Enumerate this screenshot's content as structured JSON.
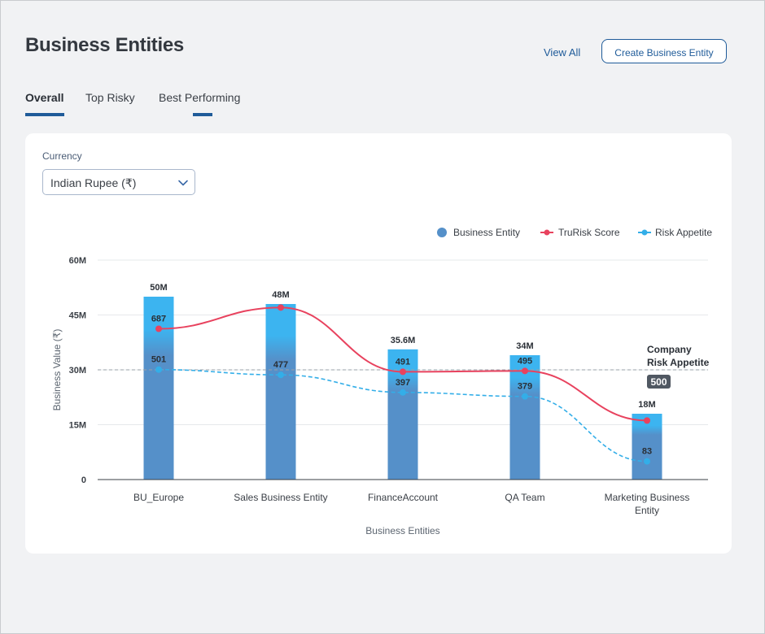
{
  "page": {
    "title": "Business Entities",
    "view_all": "View All",
    "create_button": "Create Business Entity"
  },
  "tabs": [
    {
      "label": "Overall",
      "active": true
    },
    {
      "label": "Top Risky",
      "active": false
    },
    {
      "label": "Best Performing",
      "active": false
    }
  ],
  "currency": {
    "label": "Currency",
    "value": "Indian Rupee (₹)"
  },
  "legend": {
    "business_entity": "Business Entity",
    "trurisk": "TruRisk Score",
    "risk_appetite": "Risk Appetite"
  },
  "colors": {
    "bar": "#5590c9",
    "bar_top": "#3cb4f0",
    "trurisk": "#e8425e",
    "risk_appetite": "#33aee8",
    "accent": "#1f5b99"
  },
  "chart_data": {
    "type": "bar",
    "xlabel": "Business Entities",
    "ylabel": "Business Value (₹)",
    "ylim": [
      0,
      60
    ],
    "yticks": [
      "0",
      "15M",
      "30M",
      "45M",
      "60M"
    ],
    "categories": [
      "BU_Europe",
      "Sales Business Entity",
      "FinanceAccount",
      "QA Team",
      "Marketing Business Entity"
    ],
    "series": [
      {
        "name": "Business Entity",
        "values": [
          50,
          48,
          35.6,
          34,
          18
        ],
        "labels": [
          "50M",
          "48M",
          "35.6M",
          "34M",
          "18M"
        ]
      },
      {
        "name": "TruRisk Score",
        "values": [
          687,
          784,
          491,
          495,
          269
        ],
        "labels": [
          "687",
          "",
          "491",
          "495",
          ""
        ]
      },
      {
        "name": "Risk Appetite",
        "values": [
          501,
          477,
          397,
          379,
          83
        ],
        "labels": [
          "501",
          "477",
          "397",
          "379",
          "83"
        ]
      }
    ],
    "reference_line": {
      "label_line1": "Company",
      "label_line2": "Risk Appetite",
      "value": "500"
    },
    "grid": true,
    "legend_position": "top-right"
  }
}
